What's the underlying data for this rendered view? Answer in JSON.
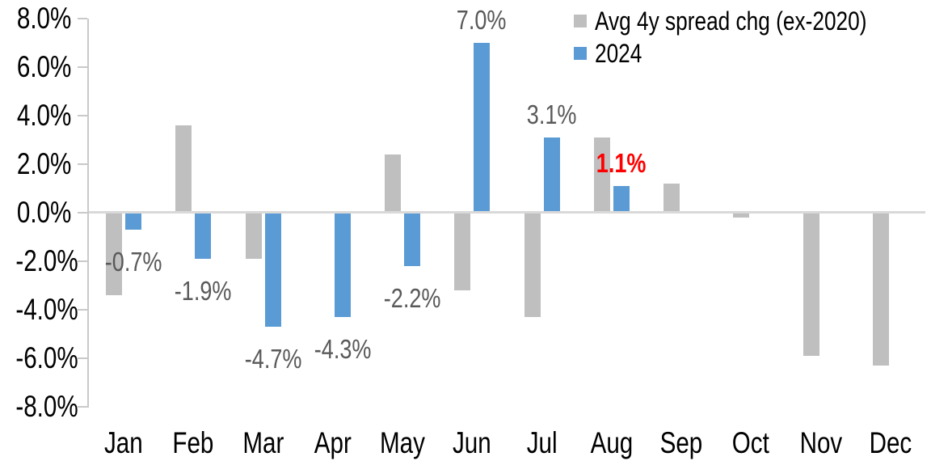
{
  "chart_data": {
    "type": "bar",
    "title": "",
    "categories": [
      "Jan",
      "Feb",
      "Mar",
      "Apr",
      "May",
      "Jun",
      "Jul",
      "Aug",
      "Sep",
      "Oct",
      "Nov",
      "Dec"
    ],
    "series": [
      {
        "name": "Avg 4y spread chg (ex-2020)",
        "color": "#BFBFBF",
        "values": [
          -3.4,
          3.6,
          -1.9,
          0.0,
          2.4,
          -3.2,
          -4.3,
          3.1,
          1.2,
          -0.2,
          -5.9,
          -6.3
        ]
      },
      {
        "name": "2024",
        "color": "#5B9BD5",
        "values": [
          -0.7,
          -1.9,
          -4.7,
          -4.3,
          -2.2,
          7.0,
          3.1,
          1.1,
          null,
          null,
          null,
          null
        ]
      }
    ],
    "data_labels": [
      {
        "category": "Jan",
        "text": "-0.7%",
        "color": "#595959",
        "bold": false
      },
      {
        "category": "Feb",
        "text": "-1.9%",
        "color": "#595959",
        "bold": false
      },
      {
        "category": "Mar",
        "text": "-4.7%",
        "color": "#595959",
        "bold": false
      },
      {
        "category": "Apr",
        "text": "-4.3%",
        "color": "#595959",
        "bold": false
      },
      {
        "category": "May",
        "text": "-2.2%",
        "color": "#595959",
        "bold": false
      },
      {
        "category": "Jun",
        "text": "7.0%",
        "color": "#595959",
        "bold": false
      },
      {
        "category": "Jul",
        "text": "3.1%",
        "color": "#595959",
        "bold": false
      },
      {
        "category": "Aug",
        "text": "1.1%",
        "color": "#FF0000",
        "bold": true
      }
    ],
    "y_axis": {
      "ticks": [
        "8.0%",
        "6.0%",
        "4.0%",
        "2.0%",
        "0.0%",
        "-2.0%",
        "-4.0%",
        "-6.0%",
        "-8.0%"
      ],
      "min": -8,
      "max": 8,
      "step": 2
    },
    "legend_position": "top-right",
    "grid": false,
    "background": "#FFFFFF",
    "axis_color": "#C9C9C9",
    "zero_line_color": "#D9D9D9"
  }
}
